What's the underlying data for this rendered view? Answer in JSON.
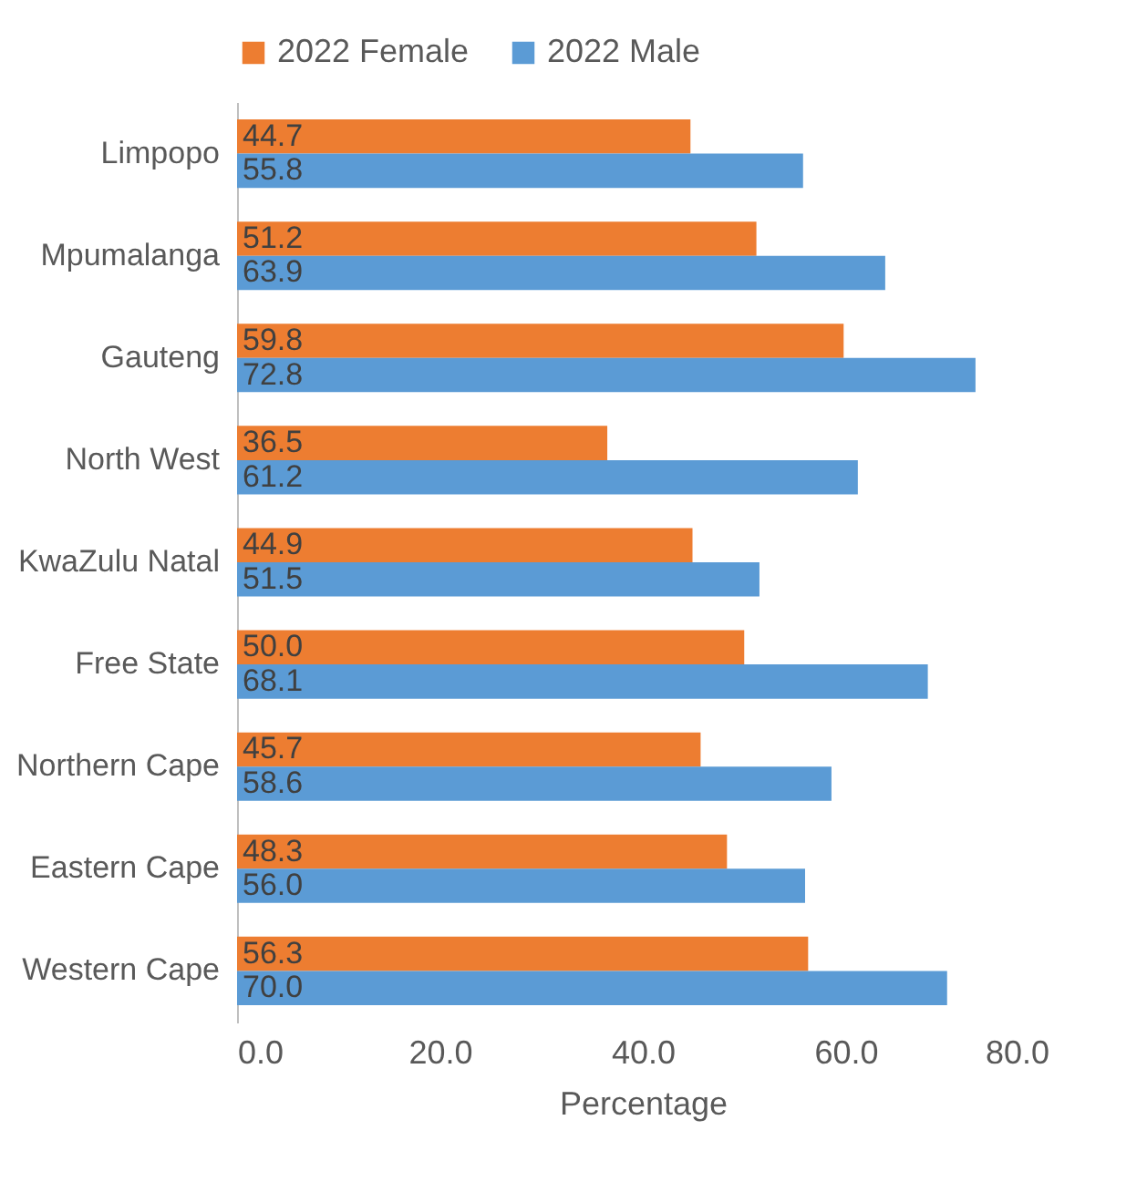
{
  "chart_data": {
    "type": "bar",
    "orientation": "horizontal",
    "xlabel": "Percentage",
    "categories": [
      "Limpopo",
      "Mpumalanga",
      "Gauteng",
      "North West",
      "KwaZulu Natal",
      "Free State",
      "Northern Cape",
      "Eastern Cape",
      "Western Cape"
    ],
    "series": [
      {
        "name": "2022 Female",
        "color": "#ed7d31",
        "values": [
          44.7,
          51.2,
          59.8,
          36.5,
          44.9,
          50.0,
          45.7,
          48.3,
          56.3
        ],
        "value_labels": [
          "44.7",
          "51.2",
          "59.8",
          "36.5",
          "44.9",
          "50.0",
          "45.7",
          "48.3",
          "56.3"
        ]
      },
      {
        "name": "2022 Male",
        "color": "#5b9bd5",
        "values": [
          55.8,
          63.9,
          72.8,
          61.2,
          51.5,
          68.1,
          58.6,
          56.0,
          70.0
        ],
        "value_labels": [
          "55.8",
          "63.9",
          "72.8",
          "61.2",
          "51.5",
          "68.1",
          "58.6",
          "56.0",
          "70.0"
        ]
      }
    ],
    "xlim": [
      0,
      80
    ],
    "xticks": [
      {
        "value": 0,
        "label": "0.0"
      },
      {
        "value": 20,
        "label": "20.0"
      },
      {
        "value": 40,
        "label": "40.0"
      },
      {
        "value": 60,
        "label": "60.0"
      },
      {
        "value": 80,
        "label": "80.0"
      }
    ],
    "grid": false,
    "legend": "top"
  }
}
